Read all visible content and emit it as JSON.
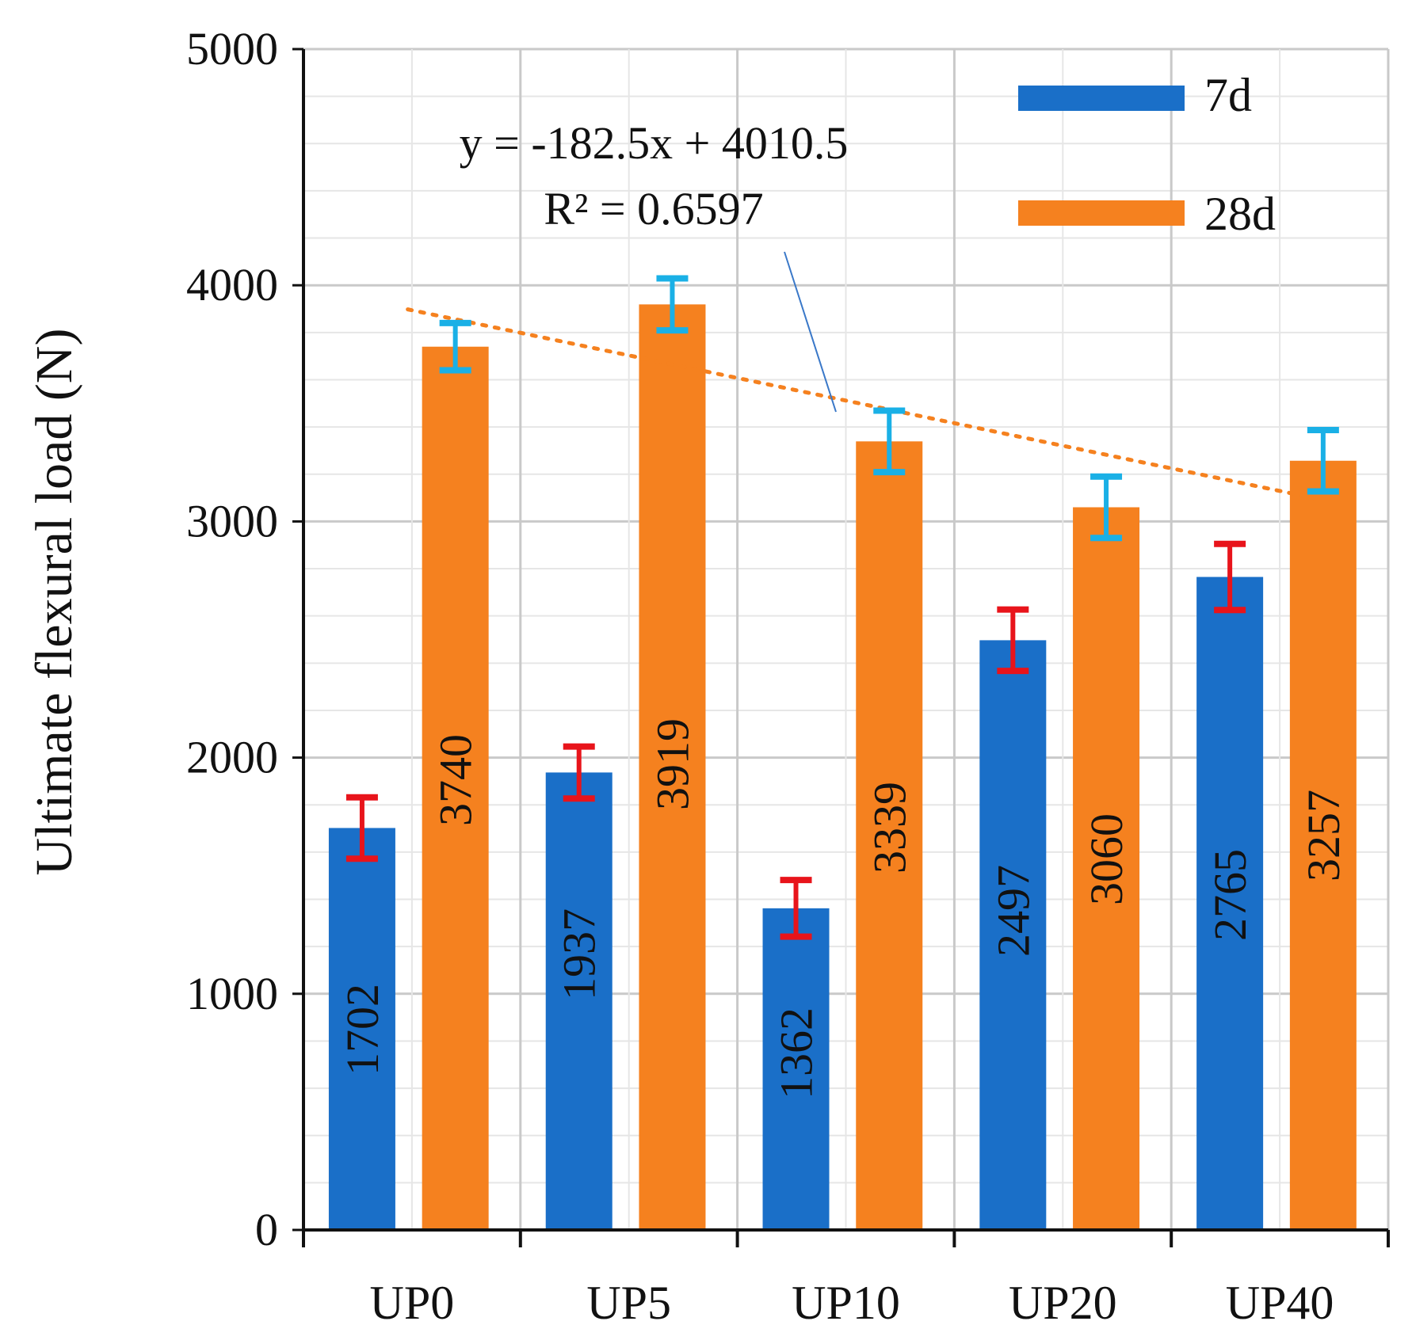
{
  "chart_data": {
    "type": "bar",
    "title": "",
    "xlabel": "",
    "ylabel": "Ultimate flexural load (N)",
    "ylim": [
      0,
      5000
    ],
    "yticks": [
      "0",
      "1000",
      "2000",
      "3000",
      "4000",
      "5000"
    ],
    "categories": [
      "UP0",
      "UP5",
      "UP10",
      "UP20",
      "UP40"
    ],
    "series": [
      {
        "name": "7d",
        "color": "#1a6fc8",
        "error_color": "#e8141b",
        "values": [
          1702,
          1937,
          1362,
          2497,
          2765
        ],
        "labels": [
          "1702",
          "1937",
          "1362",
          "2497",
          "2765"
        ],
        "error": [
          130,
          110,
          120,
          130,
          140
        ]
      },
      {
        "name": "28d",
        "color": "#f5811f",
        "error_color": "#1ab0e6",
        "values": [
          3740,
          3919,
          3339,
          3060,
          3257
        ],
        "labels": [
          "3740",
          "3919",
          "3339",
          "3060",
          "3257"
        ],
        "error": [
          100,
          110,
          130,
          130,
          130
        ]
      }
    ],
    "trendline": {
      "series": "28d",
      "color": "#f5811f",
      "style": "dotted",
      "equation": "y = -182.5x + 4010.5",
      "r_squared": "R² = 0.6597",
      "slope": -182.5,
      "intercept": 4010.5
    },
    "legend": {
      "position": "top-right",
      "entries": [
        "7d",
        "28d"
      ]
    },
    "grid": true
  }
}
